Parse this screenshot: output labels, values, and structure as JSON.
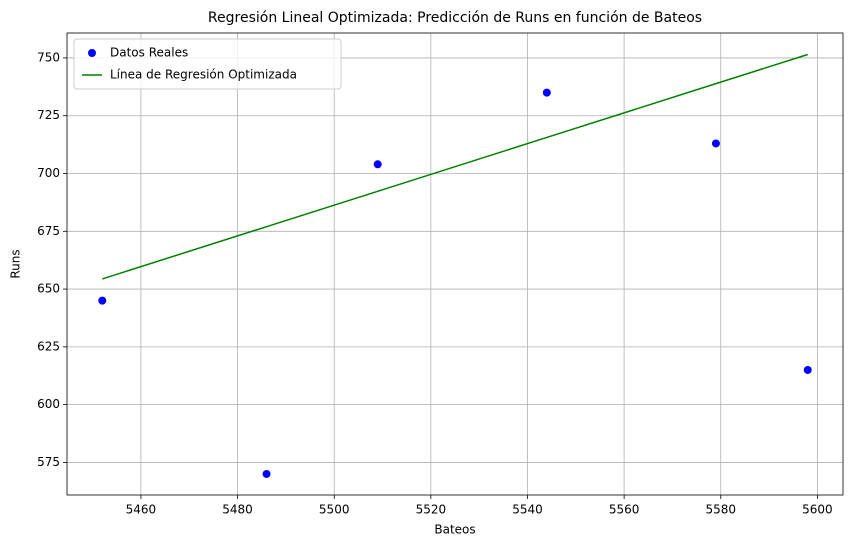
{
  "chart_data": {
    "type": "scatter",
    "title": "Regresión Lineal Optimizada: Predicción de Runs en función de Bateos",
    "xlabel": "Bateos",
    "ylabel": "Runs",
    "x": [
      5452,
      5486,
      5509,
      5544,
      5579,
      5598
    ],
    "series": [
      {
        "name": "Datos Reales",
        "type": "scatter",
        "color": "#0000ff",
        "values": [
          645,
          570,
          704,
          735,
          713,
          615
        ]
      },
      {
        "name": "Línea de Regresión Optimizada",
        "type": "line",
        "color": "#008000",
        "values": [
          654.4,
          677.0,
          692.3,
          715.6,
          738.9,
          751.5
        ]
      }
    ],
    "xlim": [
      5444.7,
      5605.3
    ],
    "ylim": [
      560.9,
      760.8
    ],
    "xticks": [
      5460,
      5480,
      5500,
      5520,
      5540,
      5560,
      5580,
      5600
    ],
    "yticks": [
      575,
      600,
      625,
      650,
      675,
      700,
      725,
      750
    ],
    "grid": true,
    "legend": "upper left"
  }
}
